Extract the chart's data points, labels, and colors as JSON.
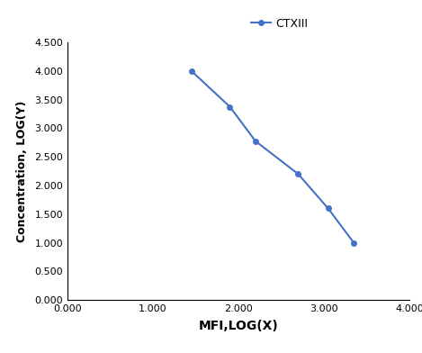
{
  "x_values": [
    1.45,
    1.9,
    2.2,
    2.7,
    3.05,
    3.35
  ],
  "y_values": [
    4.0,
    3.375,
    2.775,
    2.2,
    1.6,
    1.0
  ],
  "line_color": "#4472C4",
  "marker_color": "#4472C4",
  "marker_style": "o",
  "marker_size": 4,
  "line_width": 1.5,
  "legend_label": "CTXIII",
  "xlabel": "MFI,LOG(X)",
  "ylabel": "Concentration, LOG(Y)",
  "xlim": [
    0.0,
    4.0
  ],
  "ylim": [
    0.0,
    4.5
  ],
  "xticks": [
    0.0,
    1.0,
    2.0,
    3.0,
    4.0
  ],
  "yticks": [
    0.0,
    0.5,
    1.0,
    1.5,
    2.0,
    2.5,
    3.0,
    3.5,
    4.0,
    4.5
  ],
  "xlabel_fontsize": 10,
  "ylabel_fontsize": 9,
  "legend_fontsize": 9,
  "tick_fontsize": 8,
  "background_color": "#ffffff"
}
